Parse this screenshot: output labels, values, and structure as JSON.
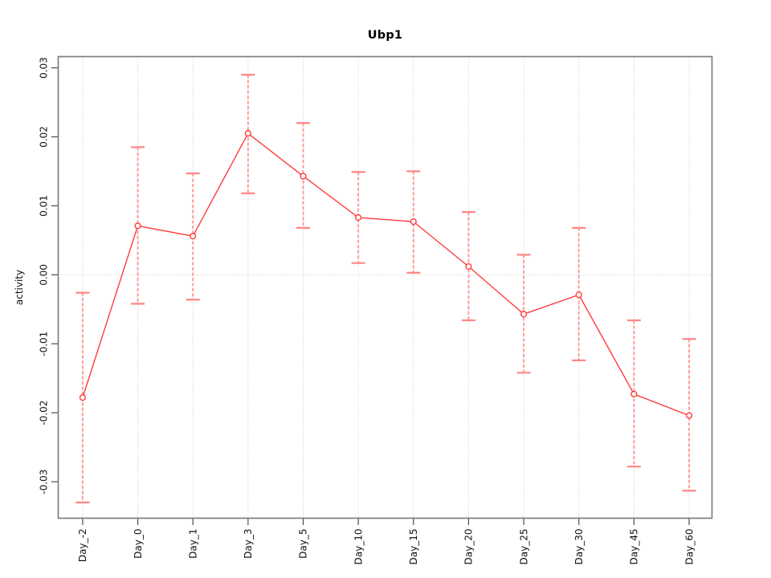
{
  "figure": {
    "background": "#ffffff"
  },
  "chart_data": {
    "type": "line",
    "title": "Ubp1",
    "xlabel": "",
    "ylabel": "activity",
    "legend": "none",
    "categories": [
      "Day_-2",
      "Day_0",
      "Day_1",
      "Day_3",
      "Day_5",
      "Day_10",
      "Day_15",
      "Day_20",
      "Day_25",
      "Day_30",
      "Day_45",
      "Day_60"
    ],
    "series": [
      {
        "name": "Ubp1",
        "values": [
          -0.0178,
          0.0071,
          0.0056,
          0.0205,
          0.0143,
          0.0083,
          0.0077,
          0.0012,
          -0.0057,
          -0.0029,
          -0.0173,
          -0.0204
        ],
        "error_upper": [
          -0.0026,
          0.0185,
          0.0147,
          0.029,
          0.022,
          0.0149,
          0.015,
          0.0091,
          0.0029,
          0.0068,
          -0.0066,
          -0.0093
        ],
        "error_lower": [
          -0.033,
          -0.0042,
          -0.0036,
          0.0118,
          0.0068,
          0.0017,
          0.0003,
          -0.0066,
          -0.0142,
          -0.0124,
          -0.0278,
          -0.0313
        ]
      }
    ],
    "yticks": [
      0.03,
      0.02,
      0.01,
      0,
      -0.01,
      -0.02,
      -0.03
    ],
    "ytick_labels": [
      "0.03",
      "0.02",
      "0.01",
      "0.00",
      "-0.01",
      "-0.02",
      "-0.03"
    ],
    "ylim": [
      -0.0353,
      0.0316
    ],
    "grid": "dotted vertical line at each category; dotted horizontal line at y=0",
    "marker": "open-circle",
    "colors": {
      "series_line": "#ff3b3b",
      "marker_stroke": "#ff3b3b",
      "error_bar_stem": "#ff9b9b",
      "error_bar_cap": "#ff8585",
      "gridline": "#c9c9c9",
      "plot_border": "#7e7e7e",
      "tick": "#4a4a4a",
      "text": "#111111"
    }
  }
}
